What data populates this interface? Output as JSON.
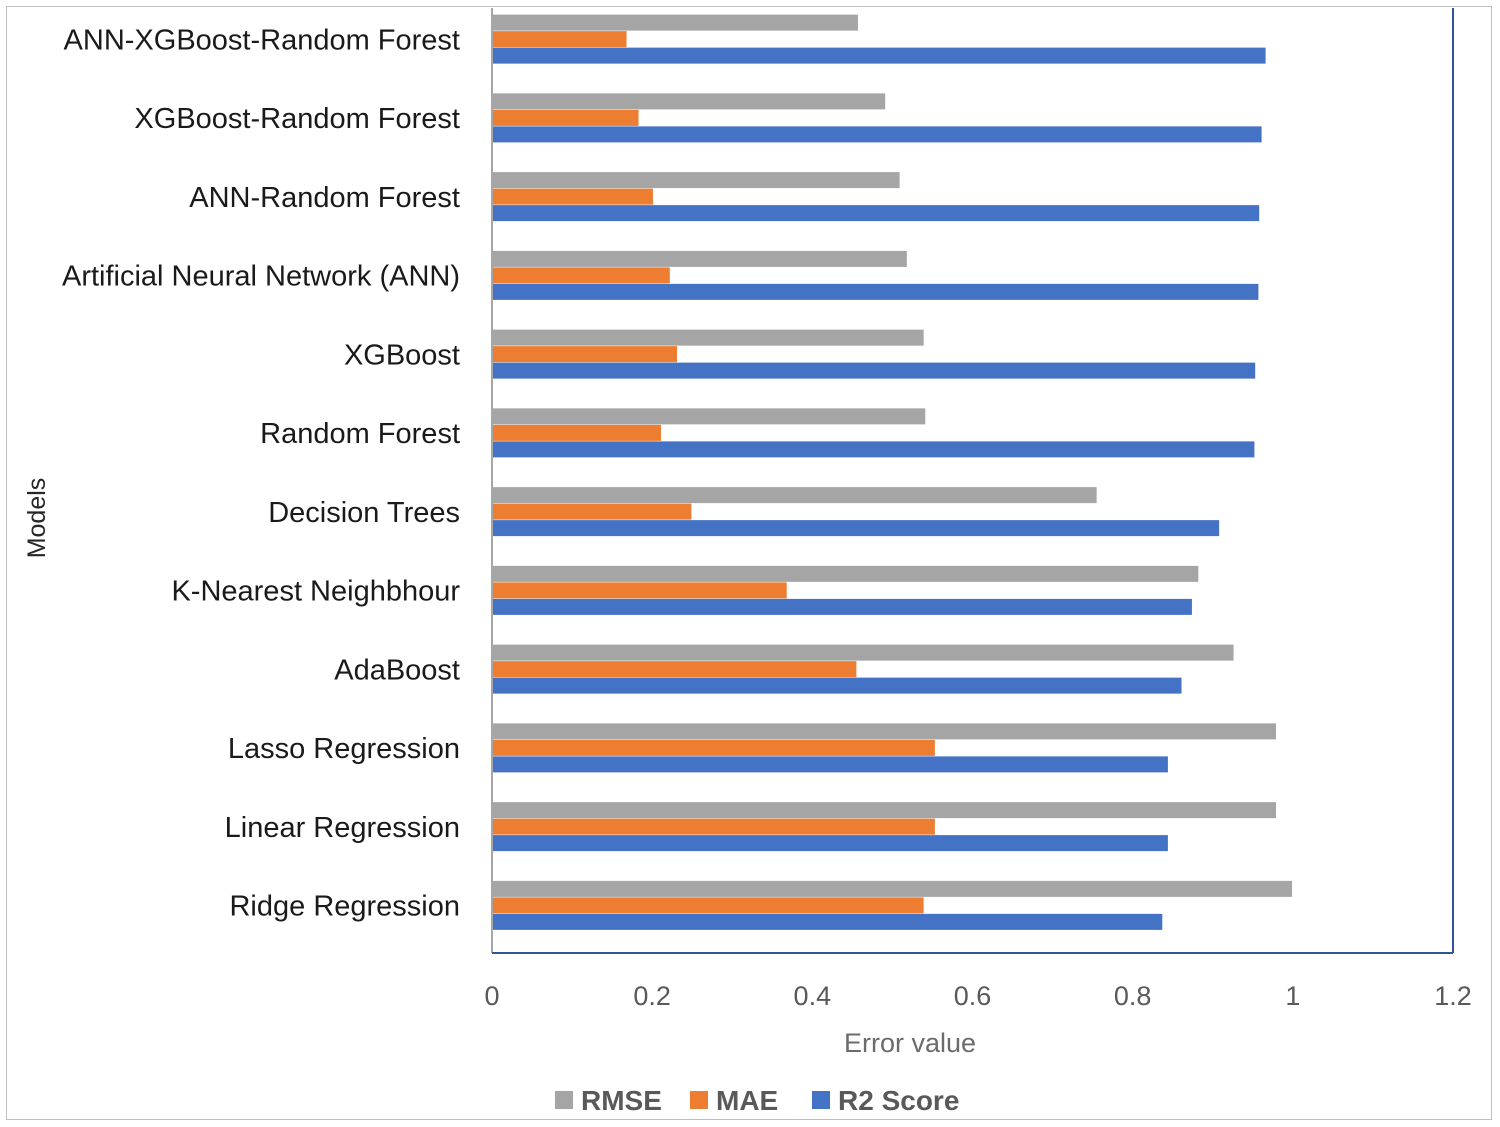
{
  "chart_data": {
    "type": "bar",
    "orientation": "horizontal",
    "categories": [
      "ANN-XGBoost-Random Forest",
      "XGBoost-Random Forest",
      "ANN-Random Forest",
      "Artificial Neural Network (ANN)",
      "XGBoost",
      "Random Forest",
      "Decision Trees",
      "K-Nearest Neighbhour",
      "AdaBoost",
      "Lasso Regression",
      "Linear Regression",
      "Ridge Regression"
    ],
    "series": [
      {
        "name": "RMSE",
        "color": "#a5a5a5",
        "values": [
          0.457,
          0.491,
          0.509,
          0.518,
          0.539,
          0.541,
          0.755,
          0.882,
          0.926,
          0.979,
          0.979,
          0.999
        ]
      },
      {
        "name": "MAE",
        "color": "#ed7d31",
        "values": [
          0.168,
          0.183,
          0.201,
          0.222,
          0.231,
          0.211,
          0.249,
          0.368,
          0.455,
          0.553,
          0.553,
          0.539
        ]
      },
      {
        "name": "R2 Score",
        "color": "#4472c4",
        "values": [
          0.966,
          0.961,
          0.958,
          0.957,
          0.953,
          0.952,
          0.908,
          0.874,
          0.861,
          0.844,
          0.844,
          0.837
        ]
      }
    ],
    "xlim": [
      0,
      1.2
    ],
    "xticks": [
      "0",
      "0.2",
      "0.4",
      "0.6",
      "0.8",
      "1",
      "1.2"
    ],
    "xlabel": "Error value",
    "ylabel": "Models",
    "legend_position": "bottom",
    "plot_border_color": "#2f5597"
  }
}
